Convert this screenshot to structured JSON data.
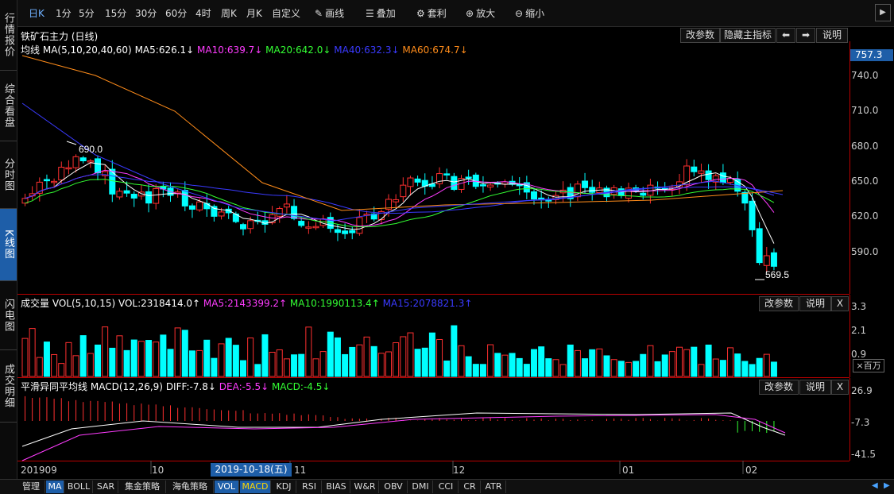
{
  "left_nav": [
    "行情报价",
    "综合看盘",
    "分时图",
    "K线图",
    "闪电图",
    "成交明细"
  ],
  "toolbar": {
    "periods": [
      "日K",
      "1分",
      "5分",
      "15分",
      "30分",
      "60分",
      "4时",
      "周K",
      "月K",
      "自定义"
    ],
    "active_period": "日K",
    "tools": [
      {
        "icon": "pen-icon",
        "glyph": "✎",
        "label": "画线"
      },
      {
        "icon": "stack-icon",
        "glyph": "☰",
        "label": "叠加"
      },
      {
        "icon": "gear-icon",
        "glyph": "⚙",
        "label": "套利"
      },
      {
        "icon": "zoom-in-icon",
        "glyph": "⊕",
        "label": "放大"
      },
      {
        "icon": "zoom-out-icon",
        "glyph": "⊖",
        "label": "缩小"
      }
    ]
  },
  "main_panel": {
    "title": "铁矿石主力 (日线)",
    "buttons": {
      "change_params": "改参数",
      "hide_indicator": "隐藏主指标",
      "prev": "⬅",
      "next": "➡",
      "help": "说明"
    },
    "ma_label": "均线",
    "ma_params": "MA(5,10,20,40,60)",
    "ma_values": [
      {
        "text": "MA5:626.1↓",
        "color": "#ffffff"
      },
      {
        "text": "MA10:639.7↓",
        "color": "#ff3cff"
      },
      {
        "text": "MA20:642.0↓",
        "color": "#33ff33"
      },
      {
        "text": "MA40:632.3↓",
        "color": "#3a3aff"
      },
      {
        "text": "MA60:674.7↓",
        "color": "#ff8c1a"
      }
    ],
    "price_tag": "757.3",
    "y_ticks": [
      "740.0",
      "710.0",
      "680.0",
      "650.0",
      "620.0",
      "590.0"
    ],
    "high_label": "690.0",
    "low_label": "569.5"
  },
  "vol_panel": {
    "title": "成交量",
    "params": "VOL(5,10,15)",
    "values": [
      {
        "text": "VOL:2318414.0↑",
        "color": "#ffffff"
      },
      {
        "text": "MA5:2143399.2↑",
        "color": "#ff3cff"
      },
      {
        "text": "MA10:1990113.4↑",
        "color": "#33ff33"
      },
      {
        "text": "MA15:2078821.3↑",
        "color": "#3a3aff"
      }
    ],
    "buttons": {
      "change_params": "改参数",
      "help": "说明",
      "close": "X"
    },
    "y_ticks": [
      "3.3",
      "2.1",
      "0.9"
    ],
    "unit": "×百万"
  },
  "macd_panel": {
    "title": "平滑异同平均线",
    "params": "MACD(12,26,9)",
    "values": [
      {
        "text": "DIFF:-7.8↓",
        "color": "#ffffff"
      },
      {
        "text": "DEA:-5.5↓",
        "color": "#ff3cff"
      },
      {
        "text": "MACD:-4.5↓",
        "color": "#33ff33"
      }
    ],
    "buttons": {
      "change_params": "改参数",
      "help": "说明",
      "close": "X"
    },
    "y_ticks": [
      "26.9",
      "-7.3",
      "-41.5"
    ]
  },
  "x_axis": {
    "labels": [
      "201909",
      "10",
      "11",
      "12",
      "01",
      "02"
    ],
    "cursor_date": "2019-10-18(五)"
  },
  "bottom_tabs": [
    "管理",
    "MA",
    "BOLL",
    "SAR",
    "集金策略",
    "海龟策略",
    "VOL",
    "MACD",
    "KDJ",
    "RSI",
    "BIAS",
    "W&R",
    "OBV",
    "DMI",
    "CCI",
    "CR",
    "ATR"
  ],
  "active_tabs": [
    "MA",
    "VOL",
    "MACD"
  ],
  "colors": {
    "up": "#ff3030",
    "down": "#00ffff",
    "grid": "#b00000",
    "axis_text": "#cccccc"
  }
}
